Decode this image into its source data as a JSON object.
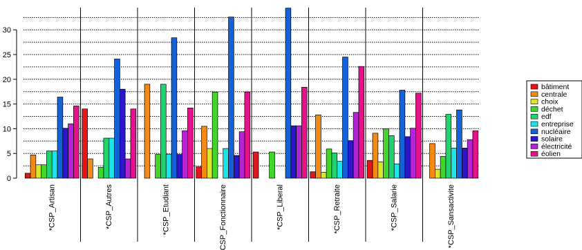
{
  "chart_data": {
    "type": "bar",
    "categories": [
      "*CSP_Artisan",
      "*CSP_Autres",
      "*CSP_Etudiant",
      "*CSP_Fonctionnaire",
      "*CSP_Liberal",
      "*CSP_Retraite",
      "*CSP_Salarie",
      "*CSP_Sansactivite"
    ],
    "series": [
      {
        "name": "bâtiment",
        "color": "#e4141b",
        "values": [
          1.0,
          14.0,
          0.0,
          2.3,
          5.3,
          1.3,
          3.6,
          0.0
        ]
      },
      {
        "name": "centrale",
        "color": "#f28a14",
        "values": [
          4.7,
          3.9,
          19.0,
          10.5,
          0.0,
          12.8,
          9.1,
          7.0
        ]
      },
      {
        "name": "choix",
        "color": "#d9e62c",
        "values": [
          2.7,
          0.0,
          0.0,
          6.0,
          0.0,
          1.2,
          3.3,
          1.8
        ]
      },
      {
        "name": "déchet",
        "color": "#42d62b",
        "values": [
          2.7,
          2.2,
          4.8,
          17.4,
          5.3,
          5.9,
          10.0,
          4.4
        ]
      },
      {
        "name": "edf",
        "color": "#1fd46f",
        "values": [
          5.5,
          8.1,
          19.0,
          0.0,
          0.0,
          5.1,
          8.6,
          12.9
        ]
      },
      {
        "name": "entreprise",
        "color": "#1de4e6",
        "values": [
          5.5,
          8.1,
          4.8,
          6.0,
          0.0,
          3.4,
          2.9,
          6.1
        ]
      },
      {
        "name": "nucléaire",
        "color": "#1362d8",
        "values": [
          16.4,
          24.1,
          28.4,
          32.6,
          34.4,
          24.5,
          17.8,
          13.8
        ]
      },
      {
        "name": "solaire",
        "color": "#2b17c9",
        "values": [
          10.1,
          18.0,
          4.8,
          4.6,
          10.6,
          7.6,
          8.4,
          6.1
        ]
      },
      {
        "name": "électricité",
        "color": "#b424d6",
        "values": [
          11.0,
          3.9,
          9.6,
          9.4,
          10.6,
          13.3,
          10.1,
          7.8
        ]
      },
      {
        "name": "éolien",
        "color": "#e6128c",
        "values": [
          14.6,
          14.0,
          14.2,
          17.4,
          18.4,
          22.6,
          17.2,
          9.6
        ]
      }
    ],
    "yticks": [
      0,
      5,
      10,
      15,
      20,
      25,
      30
    ],
    "ylim": [
      0,
      34.5
    ],
    "xlabel": "",
    "ylabel": "",
    "title": "",
    "grid": "horizontal dotted",
    "legend_position": "right"
  }
}
